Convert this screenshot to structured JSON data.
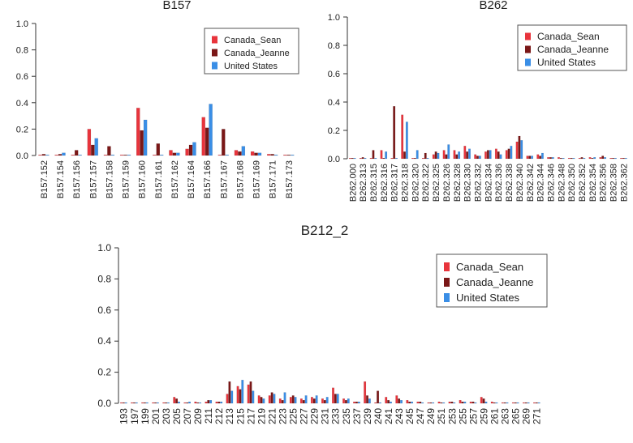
{
  "colors": {
    "Canada_Sean": "#e8343c",
    "Canada_Jeanne": "#7a1717",
    "United States": "#3a8ee6"
  },
  "chart_data": [
    {
      "type": "bar",
      "title": "B157",
      "ylim": [
        0,
        1.0
      ],
      "yticks": [
        "0.0",
        "0.2",
        "0.4",
        "0.6",
        "0.8",
        "1.0"
      ],
      "legend_position": "top-right",
      "categories": [
        "B157.152",
        "B157.154",
        "B157.156",
        "B157.157",
        "B157.158",
        "B157.159",
        "B157.160",
        "B157.161",
        "B157.162",
        "B157.164",
        "B157.166",
        "B157.167",
        "B157.168",
        "B157.169",
        "B157.171",
        "B157.173"
      ],
      "series": [
        {
          "name": "Canada_Sean",
          "values": [
            0.005,
            0.005,
            0.005,
            0.2,
            0.005,
            0.005,
            0.36,
            0.005,
            0.04,
            0.05,
            0.29,
            0.005,
            0.04,
            0.03,
            0.01,
            0.005
          ]
        },
        {
          "name": "Canada_Jeanne",
          "values": [
            0.01,
            0.01,
            0.04,
            0.08,
            0.07,
            0.005,
            0.19,
            0.09,
            0.02,
            0.08,
            0.21,
            0.2,
            0.03,
            0.02,
            0.01,
            0.005
          ]
        },
        {
          "name": "United States",
          "values": [
            0.005,
            0.02,
            0.005,
            0.13,
            0.005,
            0.005,
            0.27,
            0.005,
            0.02,
            0.1,
            0.39,
            0.005,
            0.07,
            0.02,
            0.005,
            0.005
          ]
        }
      ]
    },
    {
      "type": "bar",
      "title": "B262",
      "ylim": [
        0,
        1.0
      ],
      "yticks": [
        "0.0",
        "0.2",
        "0.4",
        "0.6",
        "0.8",
        "1.0"
      ],
      "legend_position": "top-right",
      "categories": [
        "B262.000",
        "B262.313",
        "B262.315",
        "B262.316",
        "B262.317",
        "B262.318",
        "B262.320",
        "B262.322",
        "B262.325",
        "B262.326",
        "B262.328",
        "B262.330",
        "B262.332",
        "B262.334",
        "B262.336",
        "B262.338",
        "B262.340",
        "B262.342",
        "B262.344",
        "B262.346",
        "B262.348",
        "B262.350",
        "B262.352",
        "B262.354",
        "B262.356",
        "B262.358",
        "B262.362"
      ],
      "series": [
        {
          "name": "Canada_Sean",
          "values": [
            0.005,
            0.005,
            0.005,
            0.06,
            0.005,
            0.31,
            0.005,
            0.005,
            0.03,
            0.06,
            0.06,
            0.09,
            0.03,
            0.05,
            0.07,
            0.06,
            0.12,
            0.02,
            0.03,
            0.01,
            0.01,
            0.005,
            0.005,
            0.01,
            0.01,
            0.005,
            0.005
          ]
        },
        {
          "name": "Canada_Jeanne",
          "values": [
            0.005,
            0.01,
            0.06,
            0.005,
            0.37,
            0.05,
            0.005,
            0.04,
            0.05,
            0.03,
            0.03,
            0.05,
            0.02,
            0.06,
            0.05,
            0.07,
            0.16,
            0.02,
            0.02,
            0.01,
            0.005,
            0.005,
            0.01,
            0.005,
            0.02,
            0.005,
            0.005
          ]
        },
        {
          "name": "United States",
          "values": [
            0.005,
            0.005,
            0.005,
            0.05,
            0.005,
            0.26,
            0.06,
            0.005,
            0.04,
            0.1,
            0.05,
            0.07,
            0.02,
            0.06,
            0.03,
            0.09,
            0.13,
            0.02,
            0.04,
            0.01,
            0.005,
            0.005,
            0.005,
            0.01,
            0.01,
            0.005,
            0.005
          ]
        }
      ]
    },
    {
      "type": "bar",
      "title": "B212_2",
      "ylim": [
        0,
        1.0
      ],
      "yticks": [
        "0.0",
        "0.2",
        "0.4",
        "0.6",
        "0.8",
        "1.0"
      ],
      "legend_position": "top-right",
      "categories": [
        "193",
        "197",
        "199",
        "201",
        "203",
        "205",
        "207",
        "209",
        "211",
        "212",
        "213",
        "215",
        "217",
        "219",
        "221",
        "223",
        "225",
        "227",
        "229",
        "231",
        "233",
        "235",
        "237",
        "239",
        "240",
        "241",
        "243",
        "245",
        "247",
        "249",
        "251",
        "253",
        "255",
        "257",
        "259",
        "261",
        "263",
        "265",
        "269",
        "271"
      ],
      "series": [
        {
          "name": "Canada_Sean",
          "values": [
            0.005,
            0.005,
            0.005,
            0.005,
            0.005,
            0.04,
            0.005,
            0.01,
            0.01,
            0.01,
            0.06,
            0.11,
            0.12,
            0.05,
            0.05,
            0.03,
            0.04,
            0.03,
            0.04,
            0.03,
            0.1,
            0.03,
            0.01,
            0.14,
            0.005,
            0.04,
            0.05,
            0.02,
            0.01,
            0.005,
            0.01,
            0.01,
            0.02,
            0.01,
            0.04,
            0.01,
            0.005,
            0.005,
            0.005,
            0.005
          ]
        },
        {
          "name": "Canada_Jeanne",
          "values": [
            0.005,
            0.005,
            0.005,
            0.005,
            0.005,
            0.03,
            0.005,
            0.005,
            0.02,
            0.01,
            0.14,
            0.09,
            0.14,
            0.04,
            0.07,
            0.02,
            0.05,
            0.02,
            0.03,
            0.02,
            0.06,
            0.02,
            0.01,
            0.05,
            0.08,
            0.02,
            0.03,
            0.01,
            0.01,
            0.005,
            0.005,
            0.01,
            0.01,
            0.01,
            0.03,
            0.005,
            0.005,
            0.005,
            0.005,
            0.005
          ]
        },
        {
          "name": "United States",
          "values": [
            0.005,
            0.005,
            0.005,
            0.005,
            0.005,
            0.01,
            0.01,
            0.005,
            0.02,
            0.01,
            0.08,
            0.15,
            0.08,
            0.03,
            0.06,
            0.07,
            0.04,
            0.05,
            0.05,
            0.04,
            0.06,
            0.03,
            0.01,
            0.03,
            0.005,
            0.01,
            0.02,
            0.01,
            0.005,
            0.005,
            0.005,
            0.005,
            0.01,
            0.005,
            0.01,
            0.005,
            0.005,
            0.005,
            0.005,
            0.005
          ]
        }
      ]
    }
  ]
}
